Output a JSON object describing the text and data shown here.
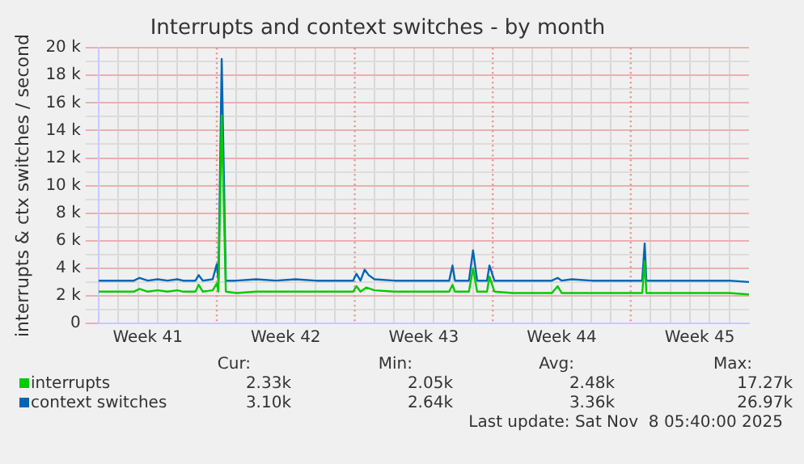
{
  "chart_data": {
    "type": "line",
    "title": "Interrupts and context switches - by month",
    "ylabel": "interrupts & ctx switches / second",
    "xlim": [
      "2025-10-07",
      "2025-11-09"
    ],
    "xticks": [
      {
        "value": "2025-10-08",
        "label": null
      },
      {
        "value": "2025-10-09",
        "label": null
      },
      {
        "value": "2025-10-09T12:00",
        "label": "Week 41"
      },
      {
        "value": "2025-10-10",
        "label": null
      },
      {
        "value": "2025-10-11",
        "label": null
      },
      {
        "value": "2025-10-12",
        "label": null
      },
      {
        "value": "2025-10-14",
        "label": null
      },
      {
        "value": "2025-10-15",
        "label": null
      },
      {
        "value": "2025-10-16",
        "label": null
      },
      {
        "value": "2025-10-16T12:00",
        "label": "Week 42"
      },
      {
        "value": "2025-10-17",
        "label": null
      },
      {
        "value": "2025-10-18",
        "label": null
      },
      {
        "value": "2025-10-19",
        "label": null
      },
      {
        "value": "2025-10-21",
        "label": null
      },
      {
        "value": "2025-10-22",
        "label": null
      },
      {
        "value": "2025-10-23",
        "label": null
      },
      {
        "value": "2025-10-23T12:00",
        "label": "Week 43"
      },
      {
        "value": "2025-10-24",
        "label": null
      },
      {
        "value": "2025-10-25",
        "label": null
      },
      {
        "value": "2025-10-26",
        "label": null
      },
      {
        "value": "2025-10-28",
        "label": null
      },
      {
        "value": "2025-10-29",
        "label": null
      },
      {
        "value": "2025-10-30",
        "label": null
      },
      {
        "value": "2025-10-30T12:00",
        "label": "Week 44"
      },
      {
        "value": "2025-10-31",
        "label": null
      },
      {
        "value": "2025-11-01",
        "label": null
      },
      {
        "value": "2025-11-02",
        "label": null
      },
      {
        "value": "2025-11-04",
        "label": null
      },
      {
        "value": "2025-11-05",
        "label": null
      },
      {
        "value": "2025-11-06",
        "label": null
      },
      {
        "value": "2025-11-06T12:00",
        "label": "Week 45"
      },
      {
        "value": "2025-11-07",
        "label": null
      },
      {
        "value": "2025-11-08",
        "label": null
      }
    ],
    "ylim": [
      0,
      20000
    ],
    "yticks": [
      {
        "value": 0,
        "label": "0"
      },
      {
        "value": 1000,
        "label": null
      },
      {
        "value": 2000,
        "label": "2 k"
      },
      {
        "value": 3000,
        "label": null
      },
      {
        "value": 4000,
        "label": "4 k"
      },
      {
        "value": 5000,
        "label": null
      },
      {
        "value": 6000,
        "label": "6 k"
      },
      {
        "value": 7000,
        "label": null
      },
      {
        "value": 8000,
        "label": "8 k"
      },
      {
        "value": 9000,
        "label": null
      },
      {
        "value": 10000,
        "label": "10 k"
      },
      {
        "value": 11000,
        "label": null
      },
      {
        "value": 12000,
        "label": "12 k"
      },
      {
        "value": 13000,
        "label": null
      },
      {
        "value": 14000,
        "label": "14 k"
      },
      {
        "value": 15000,
        "label": null
      },
      {
        "value": 16000,
        "label": "16 k"
      },
      {
        "value": 17000,
        "label": null
      },
      {
        "value": 18000,
        "label": "18 k"
      },
      {
        "value": 19000,
        "label": null
      },
      {
        "value": 20000,
        "label": "20 k"
      }
    ],
    "grid": true,
    "legend": "bottom left",
    "marker": "none",
    "line_style": "solid",
    "ref_lines": [
      {
        "axis": "x",
        "value": "2025-10-13",
        "color": "#e89090",
        "line_style": "dotted"
      },
      {
        "axis": "x",
        "value": "2025-10-20",
        "color": "#e89090",
        "line_style": "dotted"
      },
      {
        "axis": "x",
        "value": "2025-10-27",
        "color": "#e89090",
        "line_style": "dotted"
      },
      {
        "axis": "x",
        "value": "2025-11-03",
        "color": "#e89090",
        "line_style": "dotted"
      }
    ],
    "series": [
      {
        "name": "interrupts",
        "color": "#00cc00",
        "x": [
          "2025-10-07",
          "2025-10-08",
          "2025-10-08T19:00",
          "2025-10-09T02:00",
          "2025-10-09T12:00",
          "2025-10-10",
          "2025-10-10T12:00",
          "2025-10-11",
          "2025-10-11T07:00",
          "2025-10-11T22:00",
          "2025-10-12T02:00",
          "2025-10-12T07:00",
          "2025-10-12T19:00",
          "2025-10-13",
          "2025-10-13T02:00",
          "2025-10-13T06:00",
          "2025-10-13T11:00",
          "2025-10-14",
          "2025-10-15",
          "2025-10-16",
          "2025-10-17",
          "2025-10-18",
          "2025-10-19",
          "2025-10-19T22:00",
          "2025-10-20T02:00",
          "2025-10-20T07:00",
          "2025-10-20T14:00",
          "2025-10-21",
          "2025-10-22",
          "2025-10-23",
          "2025-10-24",
          "2025-10-24T19:00",
          "2025-10-24T23:00",
          "2025-10-25T02:00",
          "2025-10-25T19:00",
          "2025-10-26",
          "2025-10-26T05:00",
          "2025-10-26T17:00",
          "2025-10-26T20:00",
          "2025-10-27T02:00",
          "2025-10-28",
          "2025-10-29",
          "2025-10-30",
          "2025-10-30T07:00",
          "2025-10-30T12:00",
          "2025-10-31",
          "2025-11-01",
          "2025-11-02",
          "2025-11-03",
          "2025-11-03T14:00",
          "2025-11-03T17:00",
          "2025-11-03T19:00",
          "2025-11-05",
          "2025-11-06",
          "2025-11-07",
          "2025-11-08",
          "2025-11-09"
        ],
        "values": [
          2300,
          2300,
          2300,
          2500,
          2300,
          2400,
          2300,
          2400,
          2300,
          2300,
          2800,
          2300,
          2400,
          2900,
          2300,
          15100,
          2300,
          2200,
          2300,
          2300,
          2300,
          2300,
          2300,
          2300,
          2700,
          2300,
          2600,
          2400,
          2300,
          2300,
          2300,
          2300,
          2800,
          2300,
          2300,
          4000,
          2300,
          2300,
          3400,
          2300,
          2200,
          2200,
          2200,
          2700,
          2200,
          2200,
          2200,
          2200,
          2200,
          2200,
          4500,
          2200,
          2200,
          2200,
          2200,
          2200,
          2100
        ]
      },
      {
        "name": "context switches",
        "color": "#0066b3",
        "x": [
          "2025-10-07",
          "2025-10-08",
          "2025-10-08T19:00",
          "2025-10-09T02:00",
          "2025-10-09T12:00",
          "2025-10-10",
          "2025-10-10T12:00",
          "2025-10-11",
          "2025-10-11T07:00",
          "2025-10-11T22:00",
          "2025-10-12T02:00",
          "2025-10-12T07:00",
          "2025-10-12T19:00",
          "2025-10-13",
          "2025-10-13T02:00",
          "2025-10-13T06:00",
          "2025-10-13T11:00",
          "2025-10-14",
          "2025-10-15",
          "2025-10-16",
          "2025-10-17",
          "2025-10-18",
          "2025-10-19",
          "2025-10-19T22:00",
          "2025-10-20T02:00",
          "2025-10-20T07:00",
          "2025-10-20T12:00",
          "2025-10-20T17:00",
          "2025-10-21",
          "2025-10-22",
          "2025-10-23",
          "2025-10-24",
          "2025-10-24T19:00",
          "2025-10-24T23:00",
          "2025-10-25T02:00",
          "2025-10-25T19:00",
          "2025-10-26",
          "2025-10-26T05:00",
          "2025-10-26T17:00",
          "2025-10-26T20:00",
          "2025-10-27T02:00",
          "2025-10-28",
          "2025-10-29",
          "2025-10-30",
          "2025-10-30T07:00",
          "2025-10-30T12:00",
          "2025-10-31",
          "2025-11-01",
          "2025-11-02",
          "2025-11-03",
          "2025-11-03T14:00",
          "2025-11-03T17:00",
          "2025-11-03T19:00",
          "2025-11-05",
          "2025-11-06",
          "2025-11-07",
          "2025-11-08",
          "2025-11-09"
        ],
        "values": [
          3100,
          3100,
          3100,
          3300,
          3100,
          3200,
          3100,
          3200,
          3100,
          3100,
          3500,
          3100,
          3200,
          4300,
          3100,
          19200,
          3100,
          3100,
          3200,
          3100,
          3200,
          3100,
          3100,
          3100,
          3600,
          3100,
          3900,
          3500,
          3200,
          3100,
          3100,
          3100,
          3100,
          4200,
          3100,
          3100,
          5300,
          3100,
          3100,
          4200,
          3100,
          3100,
          3100,
          3100,
          3300,
          3100,
          3200,
          3100,
          3100,
          3100,
          3100,
          5800,
          3100,
          3100,
          3100,
          3100,
          3100,
          3000
        ]
      }
    ],
    "annotations": [
      "Cur:",
      "Min:",
      "Avg:",
      "Max:",
      "2.33k",
      "2.05k",
      "2.48k",
      "17.27k",
      "3.10k",
      "2.64k",
      "3.36k",
      "26.97k",
      "Last update: Sat Nov  8 05:40:00 2025"
    ]
  }
}
